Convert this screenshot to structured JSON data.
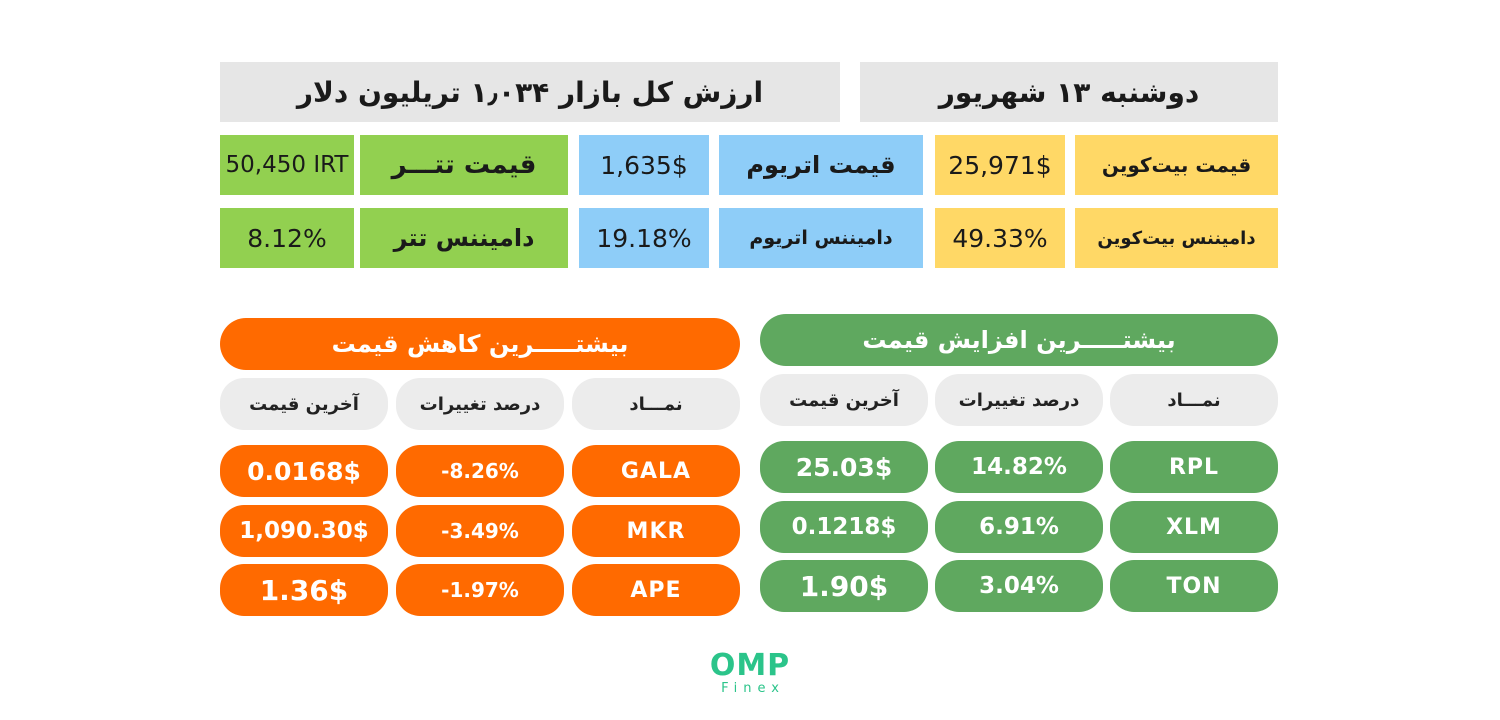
{
  "header": {
    "market_cap": "ارزش کل بازار ۱٫۰۳۴ تریلیون دلار",
    "date": "دوشنبه ۱۳ شهریور"
  },
  "prices": {
    "bitcoin_label": "قیمت بیت‌کوین",
    "bitcoin_value": "25,971$",
    "ethereum_label": "قیمت اتریوم",
    "ethereum_value": "1,635$",
    "tether_label": "قیمت تتـــر",
    "tether_value": "50,450 IRT"
  },
  "dominance": {
    "bitcoin_label": "دامیننس بیت‌کوین",
    "bitcoin_value": "49.33%",
    "ethereum_label": "دامیننس اتریوم",
    "ethereum_value": "19.18%",
    "tether_label": "دامیننس تتر",
    "tether_value": "8.12%"
  },
  "gainers": {
    "title": "بیشتـــــرین افزایش قیمت",
    "col_symbol": "نمـــاد",
    "col_change": "درصد تغییرات",
    "col_price": "آخرین قیمت",
    "rows": [
      {
        "symbol": "RPL",
        "change": "14.82%",
        "price": "25.03$"
      },
      {
        "symbol": "XLM",
        "change": "6.91%",
        "price": "0.1218$"
      },
      {
        "symbol": "TON",
        "change": "3.04%",
        "price": "1.90$"
      }
    ]
  },
  "losers": {
    "title": "بیشتـــــرین کاهش قیمت",
    "col_symbol": "نمـــاد",
    "col_change": "درصد تغییرات",
    "col_price": "آخرین قیمت",
    "rows": [
      {
        "symbol": "GALA",
        "change": "-8.26%",
        "price": "0.0168$"
      },
      {
        "symbol": "MKR",
        "change": "-3.49%",
        "price": "1,090.30$"
      },
      {
        "symbol": "APE",
        "change": "-1.97%",
        "price": "1.36$"
      }
    ]
  },
  "logo": {
    "brand": "OMP",
    "sub": "Finex"
  },
  "colors": {
    "header_gray": "#e6e6e6",
    "yellow": "#ffd866",
    "blue": "#8ecdf8",
    "light_green": "#92d050",
    "orange": "#ff6a00",
    "green": "#5fa85f",
    "logo_teal": "#2bc48a"
  }
}
